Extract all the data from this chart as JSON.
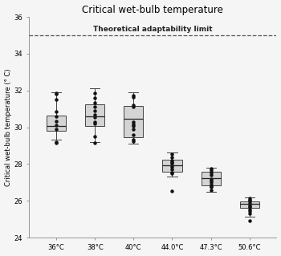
{
  "title": "Critical wet-bulb temperature",
  "ylabel": "Critical wet-bulb temperature (° C)",
  "ylim": [
    24,
    36
  ],
  "yticks": [
    24,
    26,
    28,
    30,
    32,
    34,
    36
  ],
  "categories": [
    "36°C",
    "38°C",
    "40°C",
    "44.0°C",
    "47.3°C",
    "50.6°C"
  ],
  "adaptability_line": 35.0,
  "adaptability_label": "Theoretical adaptability limit",
  "box_facecolor": "#d4d4d4",
  "box_edgecolor": "#444444",
  "whisker_color": "#444444",
  "median_color": "#222222",
  "flier_color": "#111111",
  "box_data": [
    {
      "label": "36°C",
      "median": 30.05,
      "q1": 29.8,
      "q3": 30.65,
      "whislo": 29.35,
      "whishi": 31.9,
      "fliers": [
        29.2,
        29.15,
        29.9,
        30.1,
        30.35,
        30.6,
        30.85,
        31.5,
        31.8,
        31.85
      ]
    },
    {
      "label": "38°C",
      "median": 30.6,
      "q1": 30.05,
      "q3": 31.25,
      "whislo": 29.2,
      "whishi": 32.1,
      "fliers": [
        29.15,
        29.5,
        30.2,
        30.3,
        30.55,
        30.7,
        30.9,
        31.1,
        31.35,
        31.6,
        31.85
      ]
    },
    {
      "label": "40°C",
      "median": 30.45,
      "q1": 29.45,
      "q3": 31.15,
      "whislo": 29.1,
      "whishi": 31.9,
      "fliers": [
        29.25,
        29.35,
        29.6,
        29.9,
        30.05,
        30.15,
        30.3,
        31.1,
        31.2,
        31.65,
        31.75
      ]
    },
    {
      "label": "44.0°C",
      "median": 27.95,
      "q1": 27.6,
      "q3": 28.25,
      "whislo": 27.3,
      "whishi": 28.65,
      "fliers": [
        26.55,
        27.5,
        27.55,
        27.7,
        27.85,
        27.95,
        28.05,
        28.1,
        28.2,
        28.35,
        28.55
      ]
    },
    {
      "label": "47.3°C",
      "median": 27.25,
      "q1": 26.85,
      "q3": 27.6,
      "whislo": 26.5,
      "whishi": 27.8,
      "fliers": [
        26.6,
        26.75,
        26.8,
        26.9,
        27.0,
        27.1,
        27.2,
        27.4,
        27.55,
        27.65,
        27.75
      ]
    },
    {
      "label": "50.6°C",
      "median": 25.85,
      "q1": 25.6,
      "q3": 25.95,
      "whislo": 25.15,
      "whishi": 26.2,
      "fliers": [
        24.9,
        25.3,
        25.45,
        25.55,
        25.65,
        25.7,
        25.8,
        25.9,
        26.0,
        26.05,
        26.15
      ]
    }
  ],
  "title_fontsize": 8.5,
  "label_fontsize": 6.0,
  "tick_fontsize": 6.0,
  "annot_fontsize": 6.5,
  "background_color": "#f5f5f5"
}
